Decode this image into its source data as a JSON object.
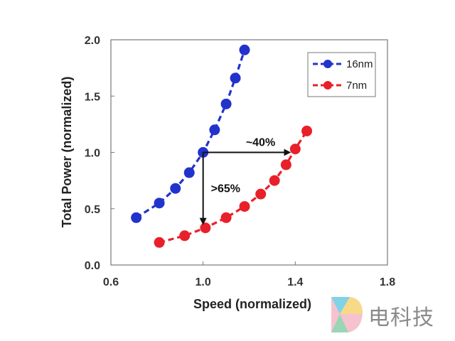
{
  "chart_data": {
    "type": "line",
    "title": "",
    "xlabel": "Speed (normalized)",
    "ylabel": "Total Power (normalized)",
    "xlim": [
      0.6,
      1.8
    ],
    "ylim": [
      0.0,
      2.0
    ],
    "xticks": [
      "0.6",
      "1.0",
      "1.4",
      "1.8"
    ],
    "yticks": [
      "0.0",
      "0.5",
      "1.0",
      "1.5",
      "2.0"
    ],
    "legend_position": "top-right",
    "series": [
      {
        "name": "16nm",
        "color": "#2233cc",
        "x": [
          0.71,
          0.81,
          0.88,
          0.94,
          1.0,
          1.05,
          1.1,
          1.14,
          1.18
        ],
        "y": [
          0.42,
          0.55,
          0.68,
          0.82,
          1.0,
          1.2,
          1.43,
          1.66,
          1.91
        ]
      },
      {
        "name": "7nm",
        "color": "#e8202a",
        "x": [
          0.81,
          0.92,
          1.01,
          1.1,
          1.18,
          1.25,
          1.31,
          1.36,
          1.4,
          1.45
        ],
        "y": [
          0.2,
          0.26,
          0.33,
          0.42,
          0.52,
          0.63,
          0.75,
          0.89,
          1.03,
          1.19
        ]
      }
    ],
    "annotations": [
      {
        "text": "~40%",
        "from": [
          1.0,
          1.0
        ],
        "to": [
          1.4,
          1.0
        ],
        "direction": "horizontal"
      },
      {
        "text": ">65%",
        "from": [
          1.0,
          1.0
        ],
        "to": [
          1.0,
          0.33
        ],
        "direction": "vertical"
      }
    ]
  },
  "watermark": {
    "text": "电科技"
  }
}
